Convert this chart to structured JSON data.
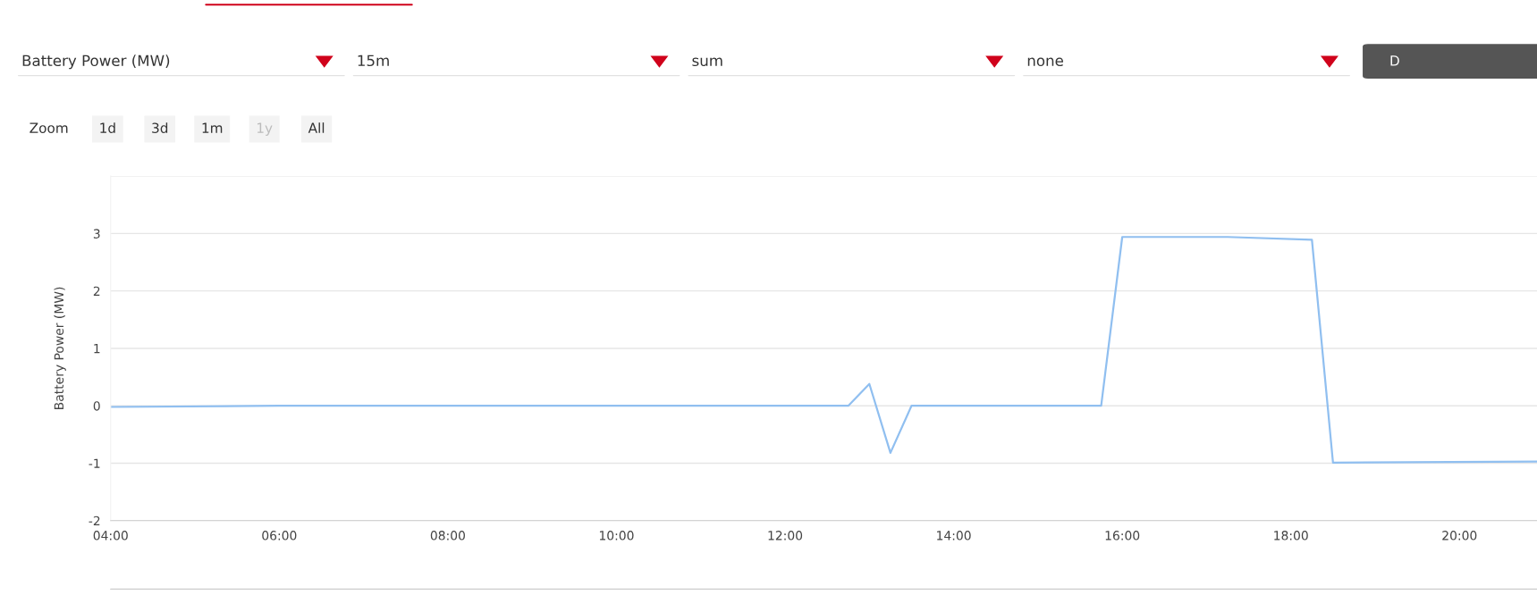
{
  "chart_data": {
    "type": "line",
    "ylabel": "Battery Power (MW)",
    "annotations": [
      "Battery Power (MW)",
      "15m",
      "sum",
      "none",
      "D",
      "Zoom",
      "1d",
      "3d",
      "1m",
      "1y",
      "All"
    ],
    "x": [
      4.0,
      6.0,
      8.0,
      10.0,
      12.0,
      12.75,
      13.0,
      13.25,
      13.5,
      15.0,
      15.75,
      16.0,
      17.25,
      18.25,
      18.5,
      20.92
    ],
    "series": [
      {
        "color": "#90bff0",
        "values": [
          -0.02,
          0.0,
          0.0,
          0.0,
          0.0,
          0.0,
          0.38,
          -0.82,
          0.0,
          0.0,
          0.0,
          2.94,
          2.94,
          2.89,
          -0.99,
          -0.97
        ]
      }
    ],
    "xlim": [
      4.0,
      20.92
    ],
    "xticks": [
      {
        "value": 4,
        "label": "04:00"
      },
      {
        "value": 6,
        "label": "06:00"
      },
      {
        "value": 8,
        "label": "08:00"
      },
      {
        "value": 10,
        "label": "10:00"
      },
      {
        "value": 12,
        "label": "12:00"
      },
      {
        "value": 14,
        "label": "14:00"
      },
      {
        "value": 16,
        "label": "16:00"
      },
      {
        "value": 18,
        "label": "18:00"
      },
      {
        "value": 20,
        "label": "20:00"
      }
    ],
    "ylim": [
      -2,
      4
    ],
    "yticks": [
      -2,
      -1,
      0,
      1,
      2,
      3,
      {
        "value": 4,
        "label": null
      }
    ],
    "grid": "y",
    "marker": "none",
    "line_style": "solid",
    "legend": false
  }
}
